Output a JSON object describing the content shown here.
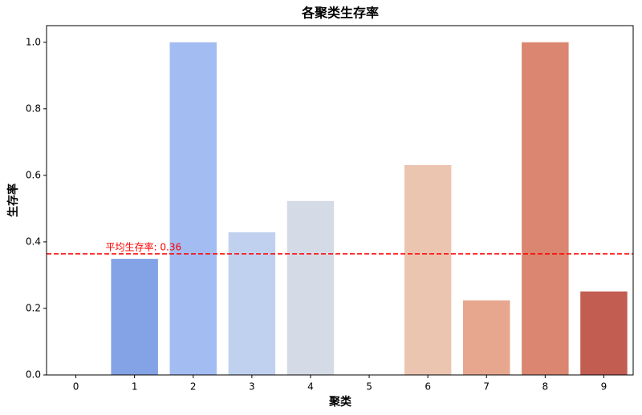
{
  "chart_data": {
    "type": "bar",
    "title": "各聚类生存率",
    "xlabel": "聚类",
    "ylabel": "生存率",
    "categories": [
      "0",
      "1",
      "2",
      "3",
      "4",
      "5",
      "6",
      "7",
      "8",
      "9"
    ],
    "values": [
      0,
      0.349,
      1.0,
      0.429,
      0.523,
      0,
      0.631,
      0.224,
      1.0,
      0.251
    ],
    "colors": [
      "#6788ee",
      "#84a3e6",
      "#a3bdf3",
      "#c0d1f0",
      "#d5dbe6",
      "#e2dad5",
      "#ecc5b1",
      "#e7a78e",
      "#da8670",
      "#c25d52"
    ],
    "ylim": [
      0,
      1.05
    ],
    "yticks": [
      {
        "value": 0,
        "label": "0.0"
      },
      {
        "value": 0.2,
        "label": "0.2"
      },
      {
        "value": 0.4,
        "label": "0.4"
      },
      {
        "value": 0.6,
        "label": "0.6"
      },
      {
        "value": 0.8,
        "label": "0.8"
      },
      {
        "value": 1.0,
        "label": "1.0"
      }
    ],
    "reference_line": {
      "value": 0.364,
      "label": "平均生存率: 0.36",
      "color": "#ff0000"
    }
  }
}
